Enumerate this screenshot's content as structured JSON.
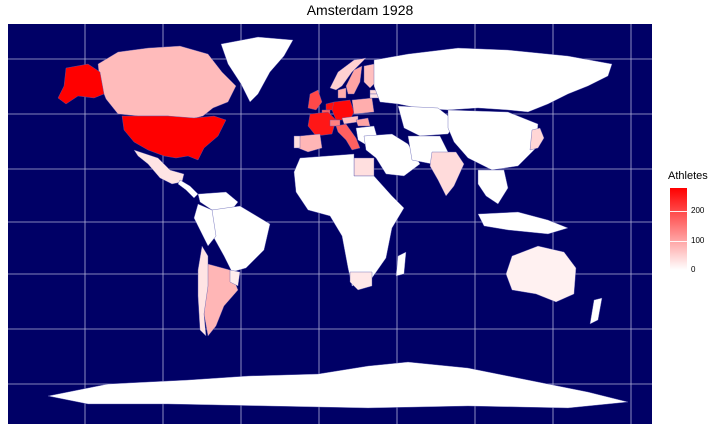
{
  "title": "Amsterdam 1928",
  "colors": {
    "ocean": "#000066",
    "land_default": "#ffffff",
    "scale_low": "#ffffff",
    "scale_high": "#ff0000",
    "grid": "#b0b0d8"
  },
  "legend": {
    "title": "Athletes",
    "ticks": [
      "0",
      "100",
      "200"
    ],
    "tick_values": [
      0,
      100,
      200
    ],
    "max": 280
  },
  "chart_data": {
    "type": "choropleth",
    "variable": "Athletes",
    "regions": [
      {
        "name": "United States",
        "value": 280
      },
      {
        "name": "Alaska",
        "value": 280
      },
      {
        "name": "Germany",
        "value": 270
      },
      {
        "name": "Netherlands",
        "value": 265
      },
      {
        "name": "France",
        "value": 255
      },
      {
        "name": "Italy",
        "value": 175
      },
      {
        "name": "United Kingdom",
        "value": 200
      },
      {
        "name": "Switzerland",
        "value": 140
      },
      {
        "name": "Canada",
        "value": 75
      },
      {
        "name": "Sweden",
        "value": 100
      },
      {
        "name": "Finland",
        "value": 70
      },
      {
        "name": "Norway",
        "value": 50
      },
      {
        "name": "Denmark",
        "value": 90
      },
      {
        "name": "Belgium",
        "value": 180
      },
      {
        "name": "Spain",
        "value": 80
      },
      {
        "name": "Poland",
        "value": 90
      },
      {
        "name": "Austria",
        "value": 70
      },
      {
        "name": "Hungary",
        "value": 100
      },
      {
        "name": "Argentina",
        "value": 80
      },
      {
        "name": "Mexico",
        "value": 30
      },
      {
        "name": "India",
        "value": 40
      },
      {
        "name": "Egypt",
        "value": 35
      },
      {
        "name": "South Africa",
        "value": 25
      },
      {
        "name": "Japan",
        "value": 45
      },
      {
        "name": "Australia",
        "value": 15
      },
      {
        "name": "Portugal",
        "value": 35
      },
      {
        "name": "Chile",
        "value": 30
      },
      {
        "name": "Uruguay",
        "value": 20
      },
      {
        "name": "Estonia",
        "value": 40
      },
      {
        "name": "Latvia",
        "value": 30
      }
    ]
  }
}
